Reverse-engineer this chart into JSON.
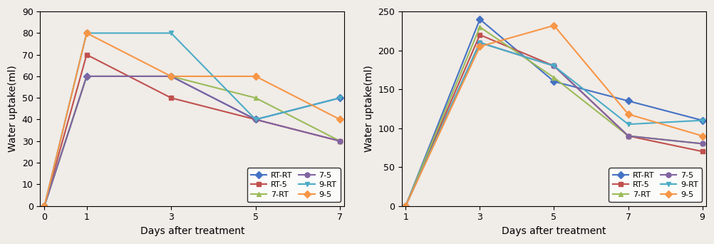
{
  "left": {
    "x": [
      0,
      1,
      3,
      5,
      7
    ],
    "series": {
      "RT-RT": [
        0,
        60,
        60,
        40,
        50
      ],
      "RT-5": [
        0,
        70,
        50,
        40,
        30
      ],
      "7-RT": [
        0,
        60,
        60,
        50,
        30
      ],
      "7-5": [
        0,
        60,
        60,
        40,
        30
      ],
      "9-RT": [
        0,
        80,
        80,
        40,
        50
      ],
      "9-5": [
        0,
        80,
        60,
        60,
        40
      ]
    },
    "ylabel": "Water uptake(ml)",
    "xlabel": "Days after treatment",
    "ylim": [
      0,
      90
    ],
    "yticks": [
      0,
      10,
      20,
      30,
      40,
      50,
      60,
      70,
      80,
      90
    ],
    "xticks": [
      0,
      1,
      3,
      5,
      7
    ]
  },
  "right": {
    "x": [
      1,
      3,
      5,
      7,
      9
    ],
    "series": {
      "RT-RT": [
        0,
        240,
        160,
        135,
        110
      ],
      "RT-5": [
        0,
        220,
        180,
        90,
        70
      ],
      "7-RT": [
        0,
        230,
        165,
        90,
        80
      ],
      "7-5": [
        0,
        210,
        180,
        90,
        80
      ],
      "9-RT": [
        0,
        210,
        180,
        105,
        110
      ],
      "9-5": [
        0,
        205,
        232,
        118,
        90
      ]
    },
    "ylabel": "Water uptake(ml)",
    "xlabel": "Days after treatment",
    "ylim": [
      0,
      250
    ],
    "yticks": [
      0,
      50,
      100,
      150,
      200,
      250
    ],
    "xticks": [
      1,
      3,
      5,
      7,
      9
    ]
  },
  "colors": {
    "RT-RT": "#4472C4",
    "RT-5": "#C0504D",
    "7-RT": "#9BBB59",
    "7-5": "#8064A2",
    "9-RT": "#4BACC6",
    "9-5": "#F79646"
  },
  "markers": {
    "RT-RT": "D",
    "RT-5": "s",
    "7-RT": "^",
    "7-5": "o",
    "9-RT": "v",
    "9-5": "D"
  },
  "legend_order": [
    "RT-RT",
    "RT-5",
    "7-RT",
    "7-5",
    "9-RT",
    "9-5"
  ],
  "bg_color": "#f0ece8",
  "fig_width": 10.02,
  "fig_height": 3.42,
  "dpi": 100
}
